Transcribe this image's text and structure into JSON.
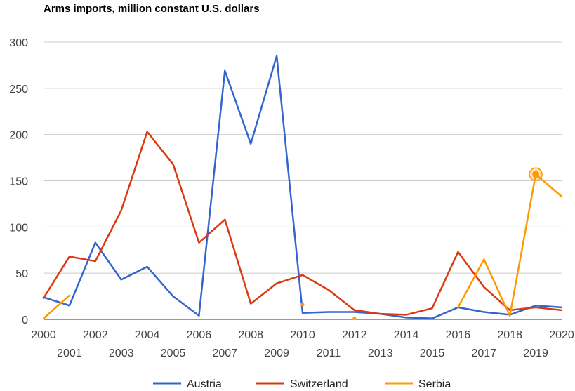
{
  "chart_data": {
    "type": "line",
    "title": "Arms imports, million constant U.S. dollars",
    "xlabel": "",
    "ylabel": "",
    "x": [
      2000,
      2001,
      2002,
      2003,
      2004,
      2005,
      2006,
      2007,
      2008,
      2009,
      2010,
      2011,
      2012,
      2013,
      2014,
      2015,
      2016,
      2017,
      2018,
      2019,
      2020
    ],
    "x_tick_labels": [
      "2000",
      "2001",
      "2002",
      "2003",
      "2004",
      "2005",
      "2006",
      "2007",
      "2008",
      "2009",
      "2010",
      "2011",
      "2012",
      "2013",
      "2014",
      "2015",
      "2016",
      "2017",
      "2018",
      "2019",
      "2020"
    ],
    "ylim": [
      0,
      300
    ],
    "y_ticks": [
      0,
      50,
      100,
      150,
      200,
      250,
      300
    ],
    "y_tick_labels": [
      "0",
      "50",
      "100",
      "150",
      "200",
      "250",
      "300"
    ],
    "grid": true,
    "legend": "bottom",
    "series": [
      {
        "name": "Austria",
        "color": "#3366cc",
        "values": [
          24,
          15,
          83,
          43,
          57,
          25,
          4,
          269,
          190,
          285,
          7,
          8,
          8,
          6,
          2,
          1,
          13,
          8,
          5,
          15,
          13
        ]
      },
      {
        "name": "Switzerland",
        "color": "#dc3912",
        "values": [
          23,
          68,
          63,
          118,
          203,
          168,
          83,
          108,
          17,
          39,
          48,
          32,
          10,
          6,
          5,
          12,
          73,
          35,
          10,
          13,
          10
        ]
      },
      {
        "name": "Serbia",
        "color": "#ff9900",
        "values": [
          1,
          26,
          null,
          null,
          null,
          null,
          null,
          null,
          null,
          null,
          16,
          null,
          1,
          null,
          null,
          null,
          13,
          65,
          4,
          157,
          133
        ],
        "highlight": {
          "x": 2019,
          "value": 157
        }
      }
    ]
  }
}
